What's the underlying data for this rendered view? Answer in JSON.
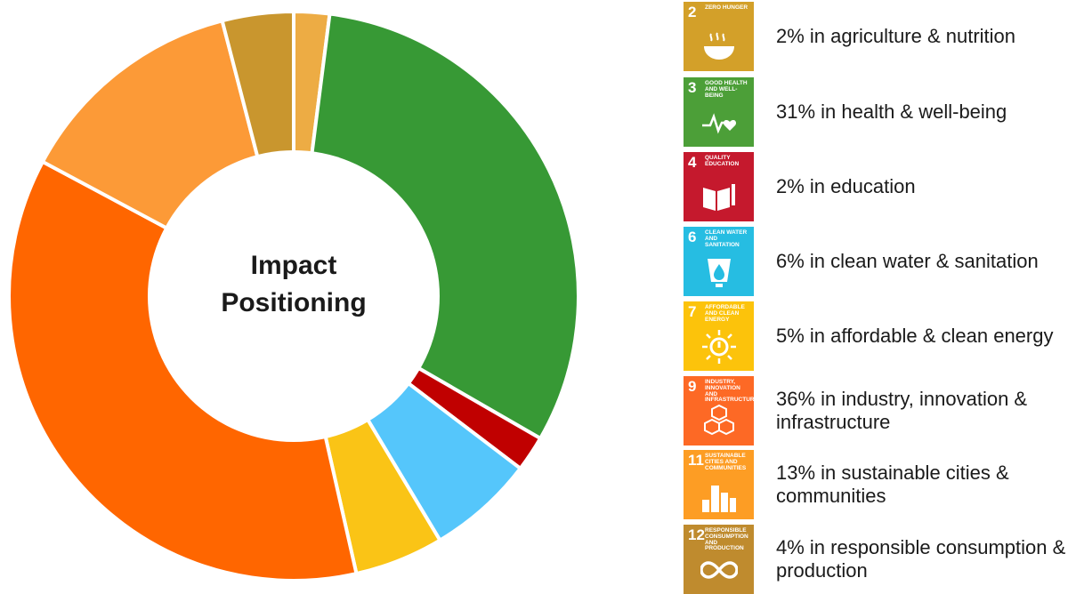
{
  "chart_data": {
    "type": "pie",
    "donut": true,
    "center_label": [
      "Impact",
      "Positioning"
    ],
    "series": [
      {
        "name": "2% in agriculture & nutrition",
        "value": 2,
        "color": "#EDAC44"
      },
      {
        "name": "31% in health & well-being",
        "value": 31,
        "color": "#379935"
      },
      {
        "name": "2% in education",
        "value": 2,
        "color": "#C00000"
      },
      {
        "name": "6% in clean water & sanitation",
        "value": 6,
        "color": "#55C6FB"
      },
      {
        "name": "5% in affordable & clean energy",
        "value": 5,
        "color": "#FAC416"
      },
      {
        "name": "36% in industry, innovation & infrastructure",
        "value": 36,
        "color": "#FF6600"
      },
      {
        "name": "13% in sustainable cities & communities",
        "value": 13,
        "color": "#FC9A37"
      },
      {
        "name": "4% in responsible consumption & production",
        "value": 4,
        "color": "#C9962E"
      }
    ],
    "legend_placement": "right"
  },
  "legend": [
    {
      "num": "2",
      "title": "ZERO HUNGER",
      "text": "2% in agriculture & nutrition",
      "color": "#D3A029",
      "icon": "bowl-icon"
    },
    {
      "num": "3",
      "title": "GOOD HEALTH AND WELL-BEING",
      "text": "31% in health & well-being",
      "color": "#4C9F38",
      "icon": "heartbeat-icon"
    },
    {
      "num": "4",
      "title": "QUALITY EDUCATION",
      "text": "2% in education",
      "color": "#C5192D",
      "icon": "book-icon"
    },
    {
      "num": "6",
      "title": "CLEAN WATER AND SANITATION",
      "text": "6% in clean water & sanitation",
      "color": "#26BDE2",
      "icon": "water-drop-icon"
    },
    {
      "num": "7",
      "title": "AFFORDABLE AND CLEAN ENERGY",
      "text": "5% in affordable & clean energy",
      "color": "#FCC30B",
      "icon": "sun-power-icon"
    },
    {
      "num": "9",
      "title": "INDUSTRY, INNOVATION AND INFRASTRUCTURE",
      "text": "36% in industry, innovation & infrastructure",
      "color": "#FD6925",
      "icon": "cubes-icon"
    },
    {
      "num": "11",
      "title": "SUSTAINABLE CITIES AND COMMUNITIES",
      "text": "13% in sustainable cities & communities",
      "color": "#FD9D24",
      "icon": "city-icon"
    },
    {
      "num": "12",
      "title": "RESPONSIBLE CONSUMPTION AND PRODUCTION",
      "text": "4% in responsible consumption & production",
      "color": "#BF8B2E",
      "icon": "infinity-icon"
    }
  ]
}
